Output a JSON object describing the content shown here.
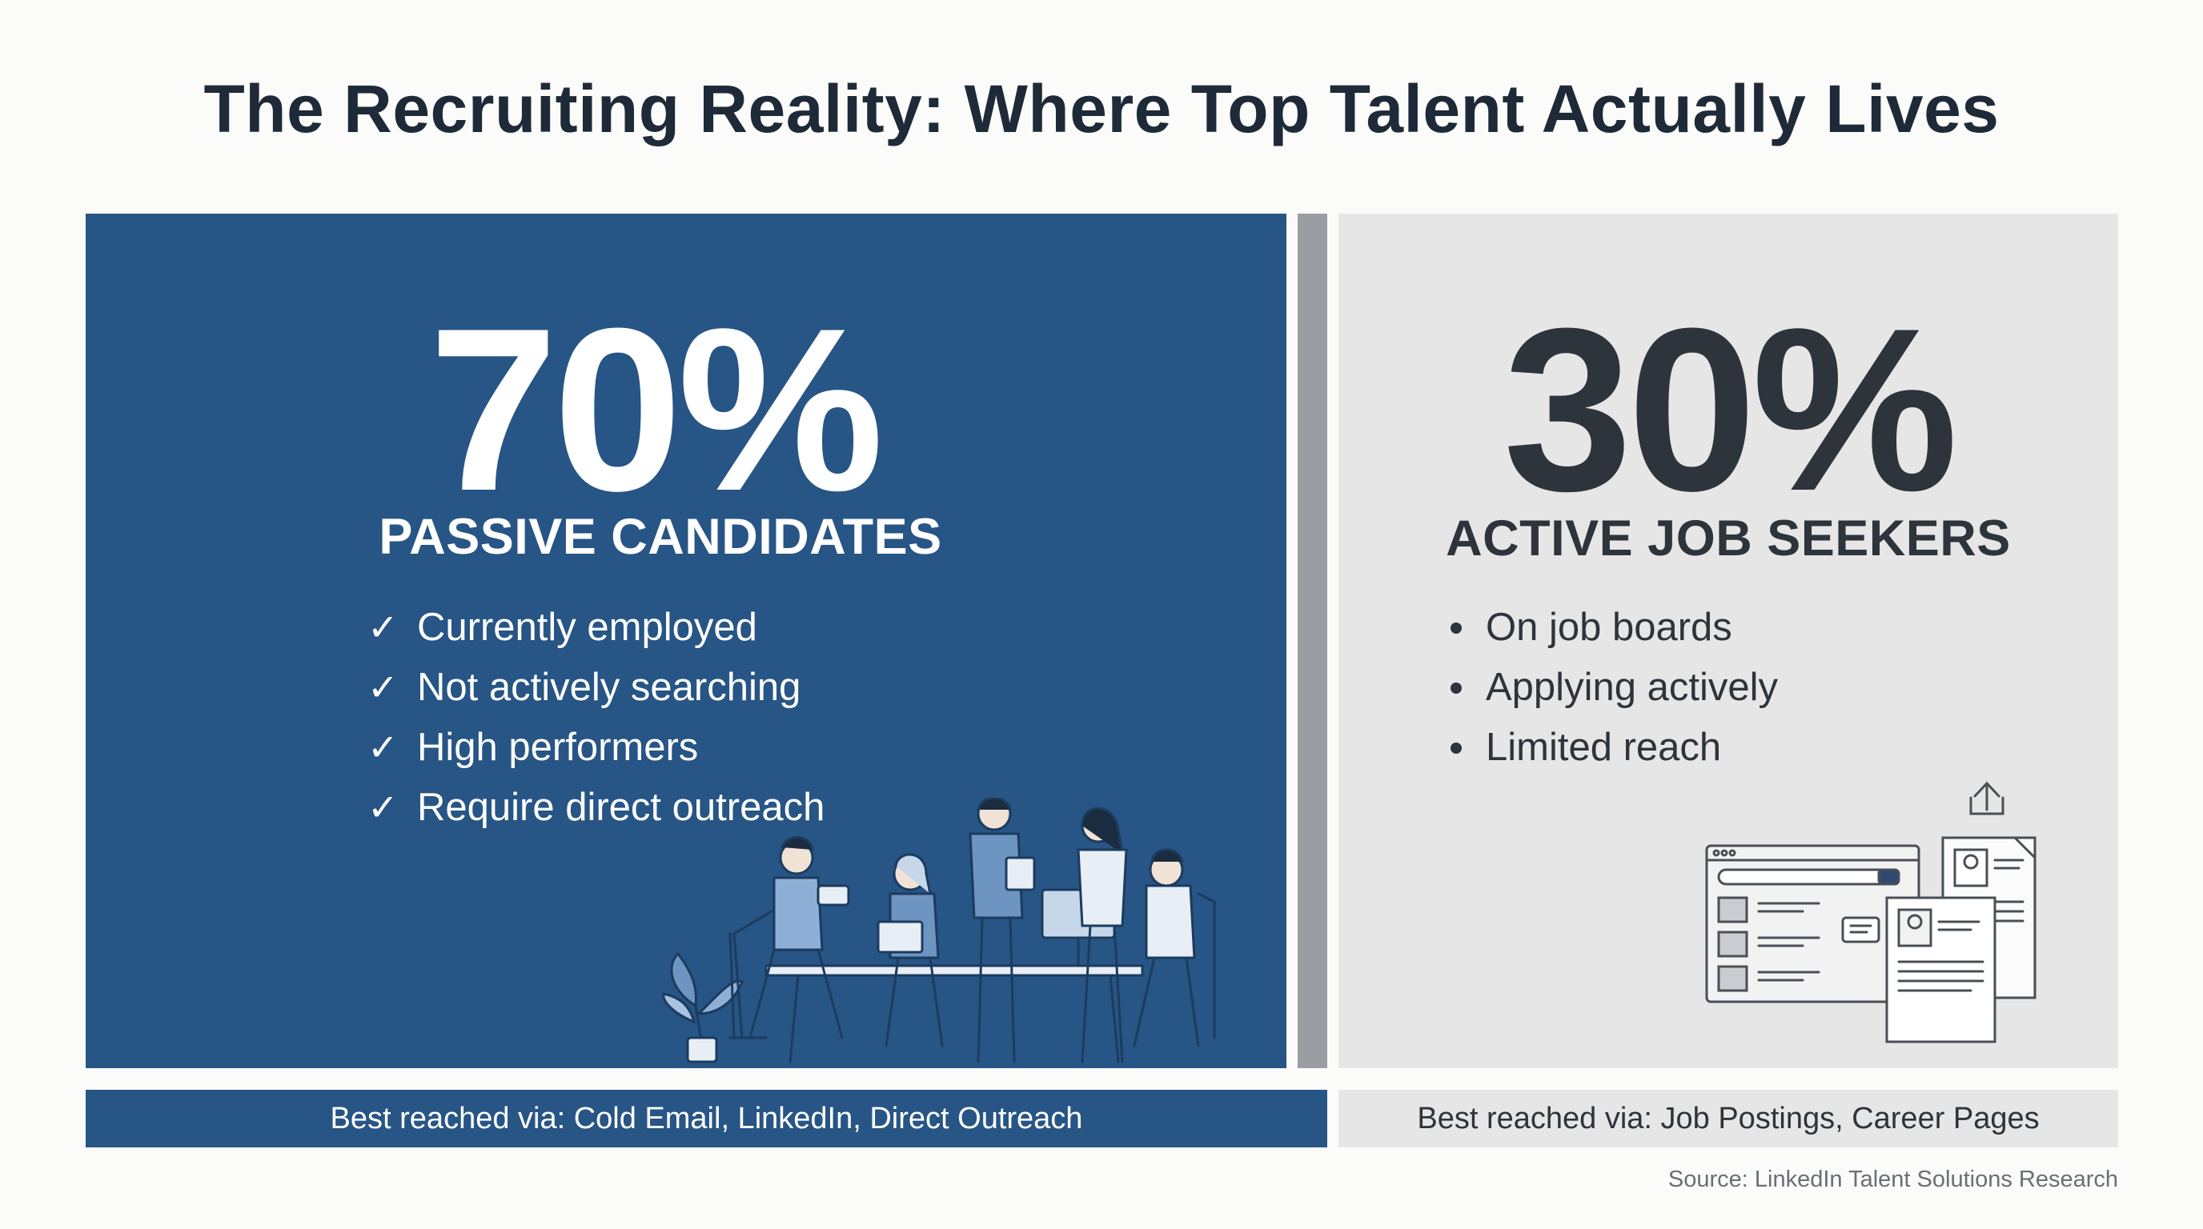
{
  "title": "The Recruiting Reality: Where Top Talent Actually Lives",
  "left": {
    "percent": "70%",
    "heading": "PASSIVE CANDIDATES",
    "items": [
      "Currently employed",
      "Not actively searching",
      "High performers",
      "Require direct outreach"
    ],
    "item_marker": "✓",
    "channels": "Best reached via: Cold Email, LinkedIn, Direct Outreach",
    "illustration": "team-at-office-table"
  },
  "right": {
    "percent": "30%",
    "heading": "ACTIVE JOB SEEKERS",
    "items": [
      "On job boards",
      "Applying actively",
      "Limited reach"
    ],
    "channels": "Best reached via: Job Postings, Career Pages",
    "illustration": "job-board-and-resumes"
  },
  "source": "Source: LinkedIn Talent Solutions Research",
  "colors": {
    "primary_blue": "#275585",
    "panel_gray": "#e6e6e6",
    "divider_gray": "#9a9da1",
    "dark_text": "#2e343b",
    "title_text": "#1f2a38"
  }
}
